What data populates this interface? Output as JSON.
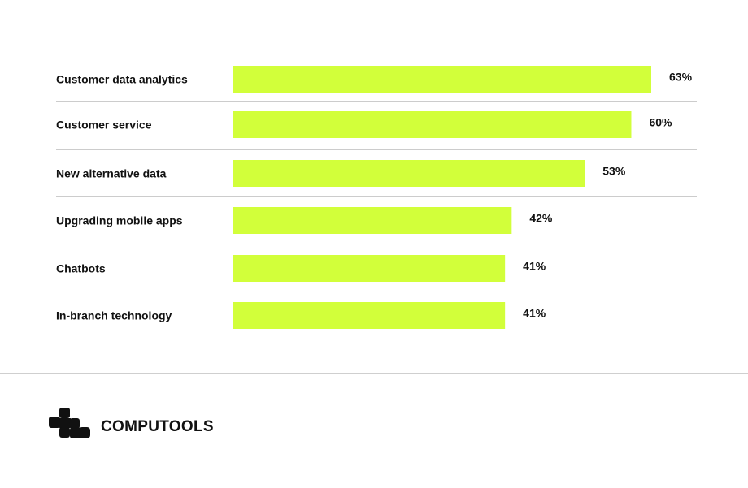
{
  "chart_data": {
    "type": "bar",
    "orientation": "horizontal",
    "categories": [
      "Customer data analytics",
      "Customer service",
      "New alternative data",
      "Upgrading mobile apps",
      "Chatbots",
      "In-branch technology"
    ],
    "values": [
      63,
      60,
      53,
      42,
      41,
      41
    ],
    "value_labels": [
      "63%",
      "60%",
      "53%",
      "42%",
      "41%",
      "41%"
    ],
    "unit": "%",
    "bar_color": "#d2ff3a",
    "grid": false,
    "legend": "none"
  },
  "footer": {
    "brand_name": "COMPUTOOLS",
    "logo_icon": "computools-logo-icon"
  }
}
